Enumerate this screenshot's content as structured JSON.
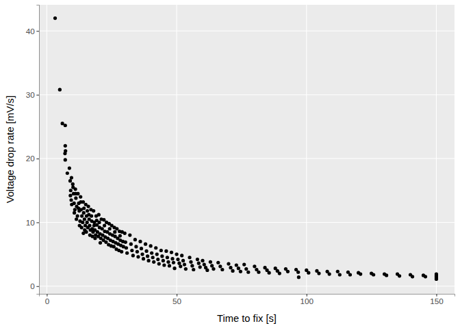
{
  "chart_data": {
    "type": "scatter",
    "x_label": "Time to fix [s]",
    "y_label": "Voltage drop rate [mV/s]",
    "color": "#000000",
    "marker": "circle",
    "grid": true,
    "xlim": [
      -3,
      157
    ],
    "ylim": [
      -1.2,
      44.1
    ],
    "xticks": [
      0,
      50,
      100,
      150
    ],
    "yticks": [
      0,
      10,
      20,
      30,
      40
    ],
    "x": [
      3.2,
      5.0,
      6.0,
      7.1,
      7.1,
      7.2,
      7.0,
      7.1,
      8.7,
      7.9,
      9.0,
      9.2,
      9.4,
      9.6,
      9.1,
      9.5,
      10.0,
      10.3,
      10.5,
      10.8,
      10.1,
      10.6,
      11.0,
      11.2,
      11.5,
      11.8,
      11.4,
      11.1,
      12.0,
      12.3,
      12.5,
      12.8,
      12.2,
      12.6,
      13.0,
      13.2,
      13.5,
      13.8,
      13.4,
      13.1,
      14.0,
      14.2,
      14.5,
      14.8,
      14.3,
      14.6,
      14.1,
      15.0,
      15.3,
      15.5,
      15.8,
      15.2,
      15.6,
      16.0,
      16.3,
      16.5,
      16.8,
      16.2,
      16.6,
      17.0,
      17.3,
      17.5,
      17.8,
      17.2,
      17.6,
      18.0,
      18.3,
      18.5,
      18.8,
      18.2,
      18.6,
      19.0,
      19.3,
      19.5,
      19.8,
      19.2,
      20.0,
      20.3,
      20.5,
      20.8,
      20.2,
      20.6,
      21.0,
      21.3,
      21.5,
      21.8,
      22.0,
      22.3,
      22.5,
      22.8,
      22.2,
      23.0,
      23.3,
      23.5,
      23.8,
      24.0,
      24.3,
      24.5,
      24.8,
      24.2,
      25.0,
      25.3,
      25.5,
      25.8,
      26.0,
      26.3,
      26.5,
      26.8,
      26.2,
      27.0,
      27.3,
      27.5,
      27.8,
      28.0,
      28.3,
      28.5,
      28.8,
      28.2,
      29.0,
      29.3,
      29.5,
      30.0,
      30.3,
      30.6,
      30.9,
      32.0,
      32.4,
      32.8,
      33.2,
      34.0,
      34.4,
      34.8,
      35.2,
      36.0,
      36.4,
      36.8,
      37.2,
      38.0,
      38.4,
      38.8,
      39.2,
      40.0,
      40.4,
      40.8,
      41.2,
      42.0,
      42.4,
      42.8,
      43.2,
      44.0,
      44.4,
      44.8,
      45.2,
      46.0,
      46.4,
      46.8,
      47.2,
      48.0,
      48.4,
      48.8,
      49.2,
      50.0,
      50.5,
      51.0,
      51.5,
      52.0,
      52.5,
      53.0,
      53.5,
      55.0,
      55.5,
      56.0,
      56.5,
      58.0,
      58.5,
      59.0,
      60.0,
      60.6,
      61.2,
      61.8,
      63.0,
      63.6,
      64.2,
      66.0,
      66.8,
      67.6,
      70.0,
      70.8,
      71.6,
      73.0,
      73.8,
      74.6,
      76.0,
      76.8,
      77.6,
      80.0,
      80.8,
      81.6,
      84.0,
      84.8,
      85.6,
      88.0,
      88.8,
      89.6,
      92.0,
      92.8,
      96.0,
      96.8,
      97.0,
      100.0,
      100.8,
      104.0,
      104.8,
      108.0,
      108.8,
      112.0,
      112.8,
      116.0,
      116.8,
      120.0,
      120.8,
      125.0,
      125.8,
      130.0,
      130.8,
      135.0,
      135.8,
      140.0,
      140.8,
      145.0,
      145.8,
      150.0,
      150.0,
      150.0,
      150.0,
      150.0
    ],
    "values": [
      42.0,
      30.8,
      25.5,
      25.2,
      22.0,
      21.2,
      20.8,
      19.8,
      18.5,
      17.7,
      16.5,
      15.0,
      13.5,
      12.8,
      14.2,
      17.0,
      16.0,
      14.5,
      13.0,
      12.0,
      15.5,
      11.5,
      15.2,
      13.8,
      12.5,
      11.0,
      10.5,
      14.5,
      14.5,
      13.0,
      11.8,
      10.2,
      12.2,
      9.5,
      14.0,
      12.0,
      11.0,
      10.0,
      9.2,
      13.2,
      13.2,
      11.5,
      10.5,
      9.5,
      12.2,
      8.8,
      8.3,
      12.8,
      11.0,
      10.0,
      9.2,
      8.5,
      11.8,
      12.5,
      10.5,
      9.5,
      8.8,
      11.2,
      8.0,
      12.0,
      10.2,
      9.0,
      8.5,
      11.0,
      7.8,
      11.8,
      10.0,
      8.8,
      8.0,
      9.5,
      7.5,
      11.0,
      9.6,
      8.5,
      7.8,
      10.3,
      11.2,
      9.2,
      8.2,
      7.5,
      10.0,
      6.8,
      10.5,
      9.0,
      8.0,
      7.2,
      10.4,
      8.6,
      7.7,
      6.9,
      9.5,
      10.0,
      8.5,
      7.5,
      6.5,
      9.8,
      8.2,
      7.2,
      6.3,
      9.0,
      9.5,
      8.0,
      7.0,
      6.2,
      9.2,
      7.8,
      6.8,
      5.8,
      8.5,
      9.0,
      7.5,
      6.6,
      5.6,
      8.6,
      7.2,
      6.4,
      5.4,
      7.9,
      8.5,
      7.0,
      6.2,
      8.3,
      6.9,
      6.0,
      5.2,
      8.0,
      6.6,
      5.6,
      4.8,
      7.3,
      6.2,
      5.4,
      4.6,
      7.0,
      5.9,
      5.0,
      4.3,
      6.6,
      5.5,
      4.7,
      4.0,
      6.3,
      5.2,
      4.5,
      3.8,
      6.0,
      5.0,
      4.2,
      3.5,
      5.6,
      4.7,
      4.0,
      3.3,
      5.5,
      4.5,
      3.8,
      3.2,
      5.3,
      4.3,
      3.7,
      2.8,
      5.0,
      4.2,
      3.6,
      3.1,
      4.8,
      4.0,
      3.4,
      2.7,
      4.5,
      3.8,
      3.2,
      2.6,
      4.2,
      3.6,
      3.0,
      4.0,
      3.4,
      2.9,
      2.5,
      3.8,
      3.2,
      2.7,
      3.7,
      3.1,
      2.6,
      3.5,
      2.9,
      2.4,
      3.3,
      2.8,
      2.3,
      3.4,
      2.7,
      2.2,
      3.1,
      2.6,
      2.2,
      2.9,
      2.5,
      2.1,
      2.8,
      2.4,
      2.0,
      2.7,
      2.3,
      2.6,
      2.2,
      1.4,
      2.5,
      2.1,
      2.4,
      2.0,
      2.3,
      1.9,
      2.3,
      1.8,
      2.2,
      1.8,
      2.1,
      1.9,
      2.0,
      1.8,
      1.9,
      1.7,
      1.9,
      1.6,
      1.8,
      1.5,
      1.7,
      1.5,
      1.9,
      1.7,
      1.5,
      1.3,
      1.1
    ]
  }
}
